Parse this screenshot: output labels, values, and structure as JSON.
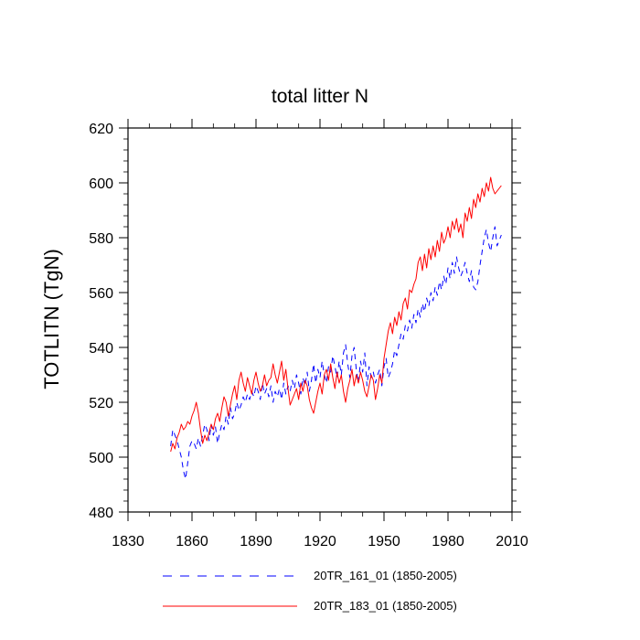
{
  "chart_data": {
    "type": "line",
    "title": "total litter N",
    "xlabel": "",
    "ylabel": "TOTLITN  (TgN)",
    "xlim": [
      1830,
      2010
    ],
    "ylim": [
      480,
      620
    ],
    "xticks": [
      1830,
      1860,
      1890,
      1920,
      1950,
      1980,
      2010
    ],
    "yticks": [
      480,
      500,
      520,
      540,
      560,
      580,
      600,
      620
    ],
    "x_start": 1850,
    "series": [
      {
        "name": "20TR_161_01 (1850-2005)",
        "color": "#0000ff",
        "style": "dashed",
        "values": [
          504,
          510,
          508,
          506,
          503,
          500,
          495,
          492,
          498,
          504,
          506,
          505,
          503,
          507,
          504,
          508,
          512,
          510,
          506,
          512,
          508,
          511,
          505,
          509,
          512,
          510,
          515,
          512,
          518,
          514,
          516,
          520,
          517,
          519,
          522,
          520,
          523,
          521,
          524,
          522,
          526,
          524,
          521,
          527,
          523,
          525,
          522,
          526,
          520,
          524,
          522,
          525,
          521,
          527,
          523,
          526,
          524,
          528,
          525,
          530,
          527,
          523,
          529,
          526,
          531,
          524,
          528,
          534,
          527,
          532,
          529,
          535,
          530,
          527,
          533,
          531,
          537,
          533,
          529,
          535,
          530,
          538,
          541,
          534,
          529,
          537,
          540,
          532,
          527,
          535,
          531,
          538,
          526,
          533,
          529,
          531,
          527,
          530,
          532,
          526,
          533,
          536,
          529,
          531,
          534,
          539,
          537,
          541,
          545,
          543,
          548,
          546,
          550,
          547,
          552,
          549,
          554,
          551,
          556,
          553,
          558,
          555,
          560,
          557,
          562,
          559,
          564,
          561,
          566,
          563,
          569,
          565,
          571,
          567,
          573,
          569,
          566,
          568,
          571,
          567,
          564,
          568,
          562,
          561,
          564,
          570,
          575,
          580,
          583,
          578,
          575,
          580,
          584,
          577,
          579,
          581
        ]
      },
      {
        "name": "20TR_183_01 (1850-2005)",
        "color": "#ff0000",
        "style": "solid",
        "values": [
          502,
          505,
          503,
          507,
          509,
          512,
          510,
          511,
          513,
          512,
          515,
          517,
          520,
          516,
          510,
          505,
          508,
          506,
          509,
          512,
          510,
          514,
          516,
          513,
          518,
          522,
          520,
          515,
          519,
          523,
          526,
          521,
          528,
          531,
          527,
          524,
          529,
          526,
          523,
          528,
          531,
          527,
          524,
          526,
          530,
          526,
          528,
          529,
          534,
          530,
          527,
          531,
          535,
          528,
          532,
          525,
          519,
          521,
          523,
          525,
          521,
          527,
          524,
          528,
          526,
          521,
          518,
          516,
          520,
          524,
          527,
          523,
          530,
          532,
          528,
          534,
          529,
          525,
          531,
          527,
          530,
          524,
          520,
          525,
          528,
          532,
          526,
          530,
          527,
          531,
          528,
          524,
          522,
          526,
          530,
          528,
          521,
          525,
          530,
          527,
          536,
          541,
          546,
          549,
          545,
          551,
          548,
          553,
          550,
          556,
          558,
          554,
          561,
          560,
          563,
          565,
          571,
          573,
          568,
          574,
          569,
          576,
          572,
          577,
          573,
          579,
          575,
          582,
          578,
          580,
          584,
          580,
          586,
          583,
          587,
          582,
          585,
          580,
          589,
          586,
          591,
          587,
          594,
          591,
          596,
          593,
          598,
          595,
          600,
          597,
          602,
          598,
          596,
          597,
          598,
          599
        ]
      }
    ]
  }
}
